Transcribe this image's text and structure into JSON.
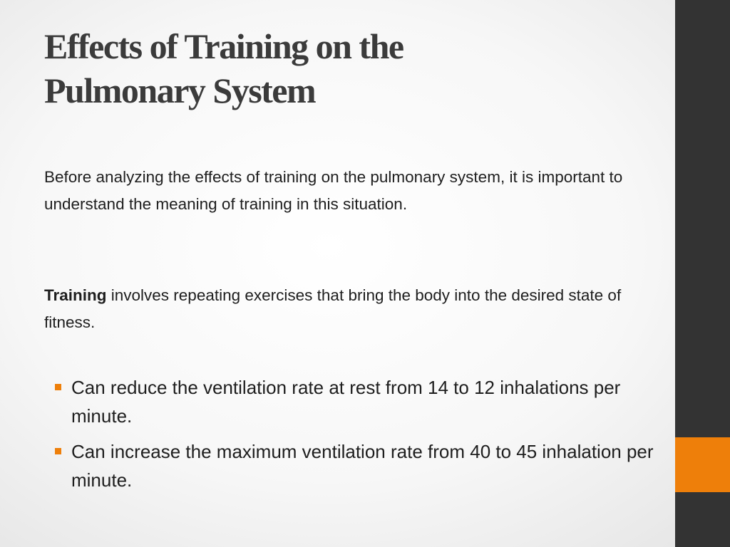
{
  "slide": {
    "title_lines": [
      "Effects of Training on the",
      "Pulmonary System"
    ],
    "intro_text": "Before analyzing the effects of training on the pulmonary system, it is important to understand the meaning of training in this situation.",
    "definition": {
      "term": "Training",
      "text": " involves repeating exercises that bring the body into the desired state of fitness."
    },
    "bullets": [
      "Can reduce the ventilation rate at rest from 14 to 12 inhalations per minute.",
      "Can increase the maximum ventilation rate from 40 to 45 inhalation per minute."
    ]
  },
  "theme": {
    "sidebar_color": "#333333",
    "accent_color": "#ee7f0a",
    "title_color": "#3b3b3b"
  }
}
